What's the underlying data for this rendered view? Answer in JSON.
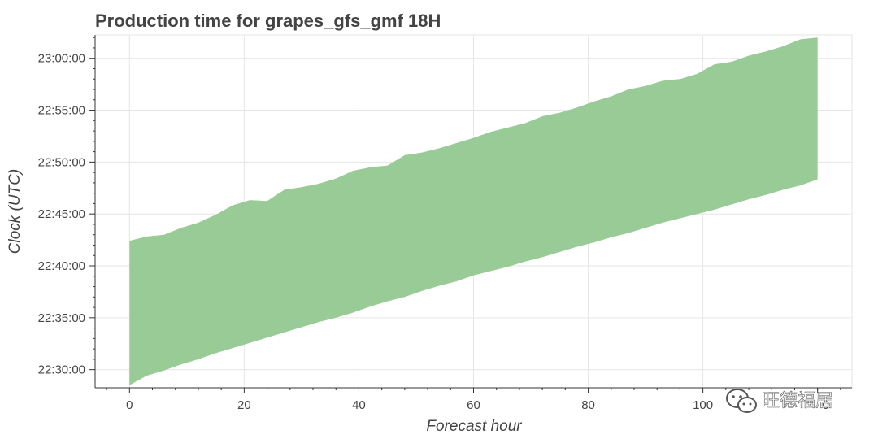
{
  "chart_data": {
    "type": "area",
    "title": "Production time for grapes_gfs_gmf 18H",
    "xlabel": "Forecast hour",
    "ylabel": "Clock (UTC)",
    "xlim": [
      -6,
      126
    ],
    "ylim": [
      "22:28:15",
      "23:02:15"
    ],
    "x_ticks": [
      0,
      20,
      40,
      60,
      80,
      100
    ],
    "x_tick_labels": [
      "0",
      "20",
      "40",
      "60",
      "80",
      "100"
    ],
    "x_last_tick_fragment": "0",
    "y_ticks": [
      "22:30:00",
      "22:35:00",
      "22:40:00",
      "22:45:00",
      "22:50:00",
      "22:55:00",
      "23:00:00"
    ],
    "color": "#99cb96",
    "grid": true,
    "x": [
      0,
      3,
      6,
      9,
      12,
      15,
      18,
      21,
      24,
      27,
      30,
      33,
      36,
      39,
      42,
      45,
      48,
      51,
      54,
      57,
      60,
      63,
      66,
      69,
      72,
      75,
      78,
      81,
      84,
      87,
      90,
      93,
      96,
      99,
      102,
      105,
      108,
      111,
      114,
      117,
      120
    ],
    "lower": [
      "22:28:30",
      "22:29:25",
      "22:29:55",
      "22:30:30",
      "22:31:00",
      "22:31:35",
      "22:32:05",
      "22:32:35",
      "22:33:05",
      "22:33:35",
      "22:34:05",
      "22:34:35",
      "22:35:00",
      "22:35:30",
      "22:36:05",
      "22:36:35",
      "22:37:00",
      "22:37:35",
      "22:38:05",
      "22:38:30",
      "22:39:05",
      "22:39:30",
      "22:39:55",
      "22:40:25",
      "22:40:50",
      "22:41:20",
      "22:41:50",
      "22:42:15",
      "22:42:45",
      "22:43:10",
      "22:43:40",
      "22:44:10",
      "22:44:35",
      "22:45:00",
      "22:45:25",
      "22:45:55",
      "22:46:25",
      "22:46:50",
      "22:47:20",
      "22:47:45",
      "22:48:20"
    ],
    "upper": [
      "22:42:25",
      "22:42:50",
      "22:43:00",
      "22:43:40",
      "22:44:10",
      "22:44:55",
      "22:45:50",
      "22:46:20",
      "22:46:15",
      "22:47:20",
      "22:47:35",
      "22:47:55",
      "22:48:25",
      "22:49:10",
      "22:49:30",
      "22:49:40",
      "22:50:40",
      "22:50:55",
      "22:51:20",
      "22:51:50",
      "22:52:20",
      "22:52:55",
      "22:53:20",
      "22:53:45",
      "22:54:25",
      "22:54:45",
      "22:55:15",
      "22:55:50",
      "22:56:20",
      "22:57:00",
      "22:57:20",
      "22:57:50",
      "22:58:00",
      "22:58:30",
      "22:59:25",
      "22:59:40",
      "23:00:15",
      "23:00:40",
      "23:01:10",
      "23:01:50",
      "23:02:00"
    ]
  },
  "watermark": {
    "text": "旺德福居",
    "icon": "wechat-icon"
  }
}
